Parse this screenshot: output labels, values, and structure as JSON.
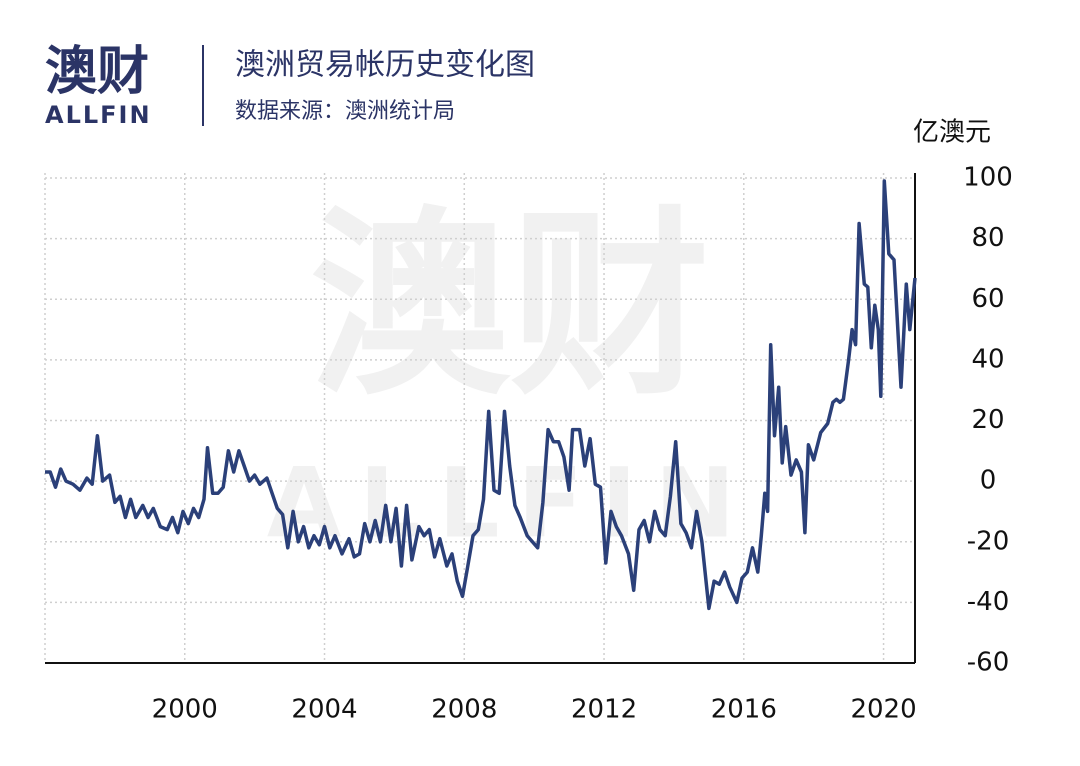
{
  "branding": {
    "logo": "澳财",
    "logo_sub": "ALLFIN"
  },
  "chart_data": {
    "type": "line",
    "title": "澳洲贸易帐历史变化图",
    "subtitle": "数据来源：澳洲统计局",
    "y_axis_label": "亿澳元",
    "watermark": [
      "澳财",
      "ALLFIN"
    ],
    "x": [
      1996.0,
      1996.15,
      1996.3,
      1996.45,
      1996.6,
      1996.8,
      1997.0,
      1997.2,
      1997.35,
      1997.5,
      1997.65,
      1997.85,
      1998.0,
      1998.15,
      1998.3,
      1998.45,
      1998.6,
      1998.8,
      1998.95,
      1999.1,
      1999.3,
      1999.5,
      1999.65,
      1999.8,
      1999.95,
      2000.1,
      2000.25,
      2000.4,
      2000.55,
      2000.65,
      2000.8,
      2000.95,
      2001.1,
      2001.25,
      2001.4,
      2001.55,
      2001.7,
      2001.85,
      2002.0,
      2002.15,
      2002.35,
      2002.5,
      2002.65,
      2002.8,
      2002.95,
      2003.1,
      2003.25,
      2003.4,
      2003.55,
      2003.7,
      2003.85,
      2004.0,
      2004.15,
      2004.3,
      2004.5,
      2004.7,
      2004.85,
      2005.0,
      2005.15,
      2005.3,
      2005.45,
      2005.6,
      2005.75,
      2005.9,
      2006.05,
      2006.2,
      2006.35,
      2006.5,
      2006.7,
      2006.85,
      2007.0,
      2007.15,
      2007.3,
      2007.5,
      2007.65,
      2007.8,
      2007.95,
      2008.1,
      2008.25,
      2008.4,
      2008.55,
      2008.7,
      2008.85,
      2009.0,
      2009.15,
      2009.3,
      2009.45,
      2009.6,
      2009.8,
      2009.95,
      2010.1,
      2010.25,
      2010.4,
      2010.55,
      2010.7,
      2010.85,
      2011.0,
      2011.1,
      2011.3,
      2011.45,
      2011.6,
      2011.75,
      2011.9,
      2012.05,
      2012.2,
      2012.35,
      2012.5,
      2012.7,
      2012.85,
      2013.0,
      2013.15,
      2013.3,
      2013.45,
      2013.6,
      2013.75,
      2013.9,
      2014.05,
      2014.2,
      2014.35,
      2014.5,
      2014.65,
      2014.8,
      2015.0,
      2015.15,
      2015.3,
      2015.45,
      2015.6,
      2015.8,
      2015.95,
      2016.1,
      2016.25,
      2016.4,
      2016.5,
      2016.6,
      2016.68,
      2016.77,
      2016.88,
      2017.0,
      2017.1,
      2017.2,
      2017.35,
      2017.5,
      2017.65,
      2017.75,
      2017.85,
      2018.0,
      2018.2,
      2018.4,
      2018.55,
      2018.65,
      2018.75,
      2018.85,
      2019.0,
      2019.1,
      2019.2,
      2019.3,
      2019.45,
      2019.55,
      2019.65,
      2019.75,
      2019.85,
      2019.92,
      2020.02,
      2020.15,
      2020.3,
      2020.5,
      2020.65,
      2020.75,
      2020.9
    ],
    "series": [
      {
        "name": "贸易帐",
        "color": "#2b4079",
        "values": [
          3,
          3,
          -2,
          4,
          0,
          -1,
          -3,
          1,
          -1,
          15,
          0,
          2,
          -7,
          -5,
          -12,
          -6,
          -12,
          -8,
          -12,
          -9,
          -15,
          -16,
          -12,
          -17,
          -10,
          -14,
          -9,
          -12,
          -6,
          11,
          -4,
          -4,
          -2,
          10,
          3,
          10,
          5,
          0,
          2,
          -1,
          1,
          -4,
          -9,
          -11,
          -22,
          -10,
          -20,
          -15,
          -22,
          -18,
          -21,
          -15,
          -22,
          -18,
          -24,
          -19,
          -25,
          -24,
          -14,
          -20,
          -13,
          -20,
          -8,
          -20,
          -9,
          -28,
          -8,
          -26,
          -15,
          -18,
          -16,
          -25,
          -19,
          -28,
          -24,
          -33,
          -38,
          -28,
          -18,
          -16,
          -6,
          23,
          -3,
          -4,
          23,
          5,
          -8,
          -12,
          -18,
          -20,
          -22,
          -7,
          17,
          13,
          13,
          8,
          -3,
          17,
          17,
          5,
          14,
          -1,
          -2,
          -27,
          -10,
          -15,
          -18,
          -24,
          -36,
          -16,
          -13,
          -20,
          -10,
          -16,
          -18,
          -5,
          13,
          -14,
          -17,
          -22,
          -10,
          -20,
          -42,
          -33,
          -34,
          -30,
          -35,
          -40,
          -32,
          -30,
          -22,
          -30,
          -18,
          -4,
          -10,
          45,
          15,
          31,
          6,
          18,
          2,
          7,
          3,
          -17,
          12,
          7,
          16,
          19,
          26,
          27,
          26,
          27,
          40,
          50,
          45,
          85,
          65,
          64,
          44,
          58,
          50,
          28,
          99,
          75,
          73,
          31,
          65,
          50,
          67
        ]
      }
    ],
    "xlim": [
      1996,
      2020.9
    ],
    "ylim": [
      -60,
      100
    ],
    "xticks": [
      2000,
      2004,
      2008,
      2012,
      2016,
      2020
    ],
    "yticks": [
      -60,
      -40,
      -20,
      0,
      20,
      40,
      60,
      80,
      100
    ],
    "grid": true
  }
}
